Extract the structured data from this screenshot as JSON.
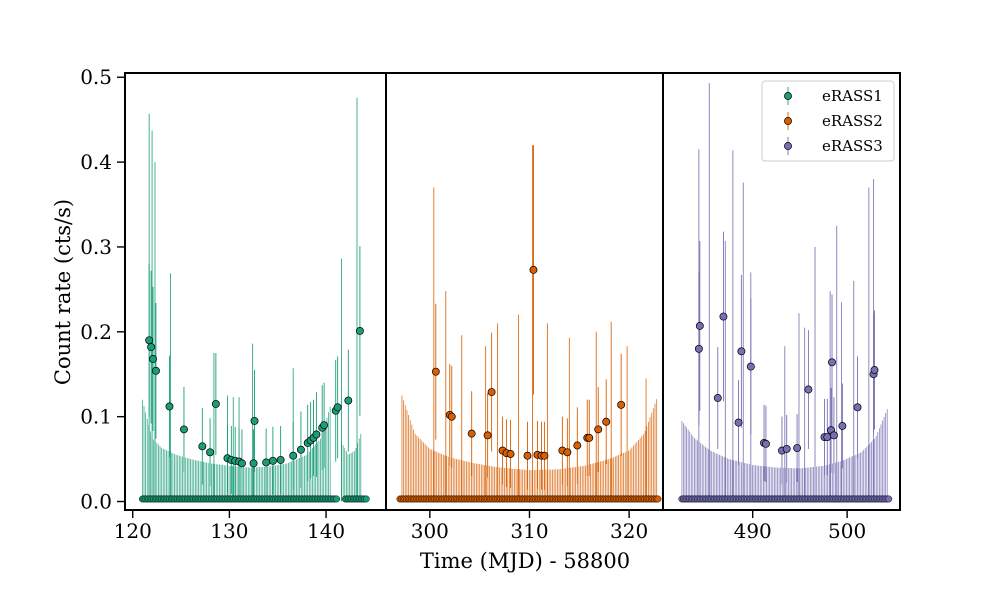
{
  "chart_data": {
    "type": "scatter",
    "subtype": "errorbar-light-curve",
    "xlabel": "Time (MJD) - 58800",
    "ylabel": "Count rate (cts/s)",
    "ylim": [
      -0.01,
      0.505
    ],
    "y_ticks": [
      0.0,
      0.1,
      0.2,
      0.3,
      0.4,
      0.5
    ],
    "y_tick_labels": [
      "0.0",
      "0.1",
      "0.2",
      "0.3",
      "0.4",
      "0.5"
    ],
    "legend_position": "top-right",
    "panels": [
      {
        "name": "eRASS1",
        "color": "#1b9e77",
        "xlim": [
          119.2,
          146.2
        ],
        "x_ticks": [
          120,
          130,
          140
        ],
        "x_tick_labels": [
          "120",
          "130",
          "140"
        ],
        "upper_limit_band": [
          [
            121.0,
            0.12
          ],
          [
            122.0,
            0.075
          ],
          [
            123.0,
            0.063
          ],
          [
            124.5,
            0.055
          ],
          [
            126.0,
            0.05
          ],
          [
            128.0,
            0.045
          ],
          [
            130.0,
            0.042
          ],
          [
            132.0,
            0.04
          ],
          [
            134.0,
            0.041
          ],
          [
            136.0,
            0.045
          ],
          [
            138.0,
            0.055
          ],
          [
            139.5,
            0.075
          ],
          [
            140.5,
            0.115
          ]
        ],
        "upper_limit_band_2": [
          [
            141.6,
            0.07
          ],
          [
            142.3,
            0.055
          ],
          [
            143.0,
            0.06
          ],
          [
            143.6,
            0.08
          ]
        ],
        "tall_bars": [
          [
            121.7,
            0.457
          ],
          [
            122.0,
            0.437
          ],
          [
            122.3,
            0.4
          ],
          [
            123.9,
            0.269
          ],
          [
            128.4,
            0.175
          ],
          [
            129.8,
            0.125
          ],
          [
            130.4,
            0.123
          ],
          [
            131.0,
            0.123
          ],
          [
            132.4,
            0.186
          ],
          [
            136.6,
            0.157
          ],
          [
            141.6,
            0.286
          ],
          [
            143.2,
            0.476
          ]
        ],
        "points": [
          [
            121.7,
            0.19,
            0.09
          ],
          [
            121.9,
            0.182,
            0.09
          ],
          [
            122.1,
            0.168,
            0.085
          ],
          [
            122.4,
            0.154,
            0.08
          ],
          [
            123.8,
            0.112,
            0.06
          ],
          [
            125.3,
            0.085,
            0.05
          ],
          [
            127.2,
            0.065,
            0.045
          ],
          [
            128.0,
            0.058,
            0.04
          ],
          [
            128.6,
            0.115,
            0.06
          ],
          [
            129.8,
            0.051,
            0.04
          ],
          [
            130.2,
            0.049,
            0.04
          ],
          [
            130.6,
            0.048,
            0.04
          ],
          [
            131.0,
            0.047,
            0.04
          ],
          [
            131.3,
            0.045,
            0.04
          ],
          [
            132.5,
            0.045,
            0.04
          ],
          [
            132.6,
            0.095,
            0.06
          ],
          [
            133.8,
            0.046,
            0.04
          ],
          [
            134.5,
            0.048,
            0.04
          ],
          [
            135.3,
            0.049,
            0.04
          ],
          [
            136.6,
            0.054,
            0.04
          ],
          [
            137.4,
            0.061,
            0.045
          ],
          [
            138.1,
            0.069,
            0.045
          ],
          [
            138.4,
            0.072,
            0.045
          ],
          [
            138.7,
            0.075,
            0.045
          ],
          [
            139.0,
            0.079,
            0.05
          ],
          [
            139.6,
            0.087,
            0.05
          ],
          [
            139.8,
            0.09,
            0.05
          ],
          [
            141.0,
            0.107,
            0.06
          ],
          [
            141.2,
            0.111,
            0.06
          ],
          [
            142.3,
            0.119,
            0.06
          ],
          [
            143.5,
            0.201,
            0.1
          ]
        ],
        "zero_range": [
          121.0,
          141.1
        ],
        "zero_range_2": [
          142.0,
          144.2
        ]
      },
      {
        "name": "eRASS2",
        "color": "#d95f02",
        "xlim": [
          295.6,
          323.4
        ],
        "x_ticks": [
          300,
          310,
          320
        ],
        "x_tick_labels": [
          "300",
          "310",
          "320"
        ],
        "upper_limit_band": [
          [
            297.2,
            0.125
          ],
          [
            298.5,
            0.08
          ],
          [
            300.0,
            0.062
          ],
          [
            302.0,
            0.052
          ],
          [
            304.5,
            0.045
          ],
          [
            307.0,
            0.04
          ],
          [
            310.0,
            0.037
          ],
          [
            313.0,
            0.038
          ],
          [
            315.5,
            0.042
          ],
          [
            318.0,
            0.05
          ],
          [
            320.0,
            0.06
          ],
          [
            321.5,
            0.08
          ],
          [
            322.9,
            0.125
          ]
        ],
        "upper_limit_band_2": [],
        "tall_bars": [
          [
            300.4,
            0.37
          ],
          [
            301.6,
            0.248
          ],
          [
            303.2,
            0.196
          ],
          [
            305.6,
            0.183
          ],
          [
            306.8,
            0.21
          ],
          [
            308.9,
            0.22
          ],
          [
            310.3,
            0.42
          ],
          [
            311.8,
            0.21
          ],
          [
            314.0,
            0.193
          ],
          [
            316.7,
            0.2
          ],
          [
            318.2,
            0.212
          ],
          [
            319.8,
            0.183
          ],
          [
            321.7,
            0.145
          ]
        ],
        "points": [
          [
            300.6,
            0.153,
            0.08
          ],
          [
            302.0,
            0.102,
            0.06
          ],
          [
            302.2,
            0.1,
            0.06
          ],
          [
            304.2,
            0.08,
            0.05
          ],
          [
            305.8,
            0.078,
            0.05
          ],
          [
            306.2,
            0.129,
            0.07
          ],
          [
            307.3,
            0.06,
            0.04
          ],
          [
            307.7,
            0.057,
            0.04
          ],
          [
            308.1,
            0.056,
            0.04
          ],
          [
            309.8,
            0.054,
            0.04
          ],
          [
            310.4,
            0.273,
            0.147
          ],
          [
            310.8,
            0.055,
            0.04
          ],
          [
            311.2,
            0.054,
            0.04
          ],
          [
            311.5,
            0.054,
            0.04
          ],
          [
            313.3,
            0.06,
            0.04
          ],
          [
            313.8,
            0.058,
            0.04
          ],
          [
            314.8,
            0.066,
            0.045
          ],
          [
            315.8,
            0.075,
            0.045
          ],
          [
            316.0,
            0.075,
            0.045
          ],
          [
            316.9,
            0.085,
            0.05
          ],
          [
            317.7,
            0.094,
            0.05
          ],
          [
            319.2,
            0.114,
            0.06
          ]
        ],
        "zero_range": [
          297.0,
          322.9
        ],
        "zero_range_2": []
      },
      {
        "name": "eRASS3",
        "color": "#7570b3",
        "xlim": [
          480.5,
          505.6
        ],
        "x_ticks": [
          490,
          500
        ],
        "x_tick_labels": [
          "490",
          "500"
        ],
        "upper_limit_band": [
          [
            482.5,
            0.095
          ],
          [
            483.8,
            0.075
          ],
          [
            485.5,
            0.06
          ],
          [
            487.5,
            0.05
          ],
          [
            490.0,
            0.043
          ],
          [
            492.5,
            0.04
          ],
          [
            495.0,
            0.039
          ],
          [
            497.5,
            0.042
          ],
          [
            499.5,
            0.048
          ],
          [
            501.5,
            0.058
          ],
          [
            503.0,
            0.075
          ],
          [
            504.4,
            0.113
          ]
        ],
        "upper_limit_band_2": [],
        "tall_bars": [
          [
            484.3,
            0.415
          ],
          [
            485.4,
            0.493
          ],
          [
            487.1,
            0.307
          ],
          [
            487.9,
            0.414
          ],
          [
            489.0,
            0.376
          ],
          [
            489.8,
            0.27
          ],
          [
            493.4,
            0.183
          ],
          [
            494.9,
            0.222
          ],
          [
            495.5,
            0.205
          ],
          [
            496.6,
            0.3
          ],
          [
            498.2,
            0.248
          ],
          [
            498.9,
            0.325
          ],
          [
            499.4,
            0.235
          ],
          [
            500.7,
            0.26
          ],
          [
            502.3,
            0.37
          ],
          [
            502.8,
            0.38
          ]
        ],
        "points": [
          [
            484.3,
            0.18,
            0.09
          ],
          [
            484.4,
            0.207,
            0.1
          ],
          [
            486.3,
            0.122,
            0.06
          ],
          [
            486.9,
            0.218,
            0.1
          ],
          [
            488.5,
            0.093,
            0.05
          ],
          [
            488.8,
            0.177,
            0.09
          ],
          [
            489.8,
            0.159,
            0.08
          ],
          [
            491.2,
            0.069,
            0.045
          ],
          [
            491.4,
            0.068,
            0.045
          ],
          [
            493.1,
            0.06,
            0.04
          ],
          [
            493.6,
            0.062,
            0.04
          ],
          [
            494.7,
            0.063,
            0.04
          ],
          [
            495.9,
            0.132,
            0.07
          ],
          [
            497.6,
            0.076,
            0.045
          ],
          [
            497.9,
            0.076,
            0.045
          ],
          [
            498.3,
            0.084,
            0.05
          ],
          [
            498.4,
            0.164,
            0.08
          ],
          [
            498.6,
            0.078,
            0.045
          ],
          [
            499.5,
            0.089,
            0.05
          ],
          [
            501.1,
            0.111,
            0.06
          ],
          [
            502.8,
            0.15,
            0.07
          ],
          [
            502.9,
            0.155,
            0.07
          ]
        ],
        "zero_range": [
          482.5,
          504.5
        ],
        "zero_range_2": []
      }
    ],
    "legend": [
      {
        "label": "eRASS1",
        "color": "#1b9e77"
      },
      {
        "label": "eRASS2",
        "color": "#d95f02"
      },
      {
        "label": "eRASS3",
        "color": "#7570b3"
      }
    ]
  }
}
